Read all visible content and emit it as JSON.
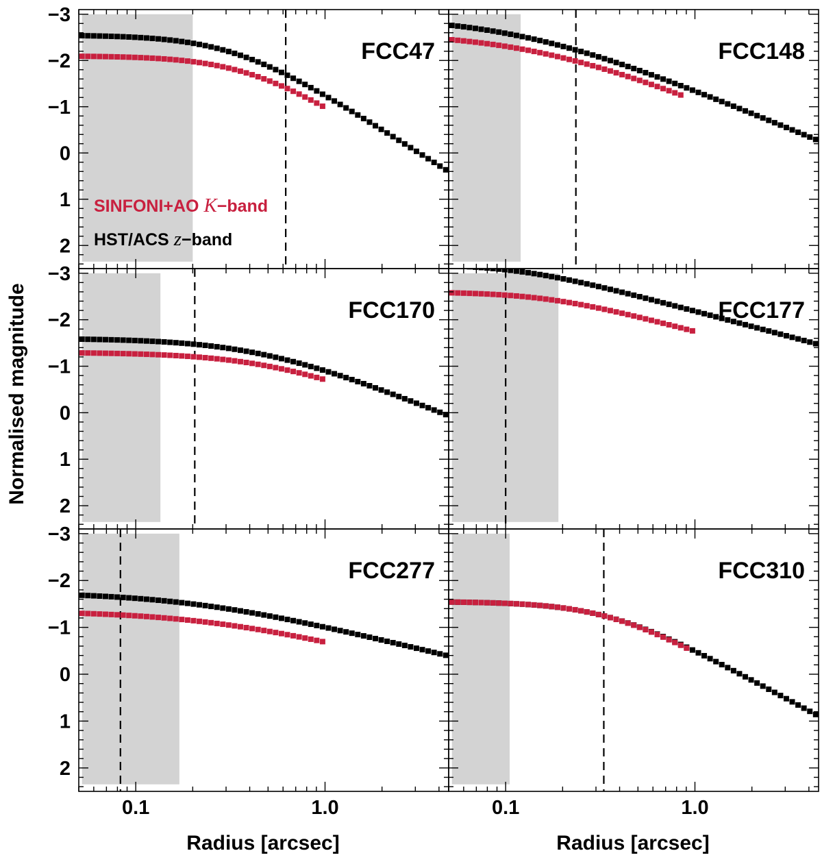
{
  "chart_data": {
    "type": "scatter",
    "ylabel": "Normalised magnitude",
    "xlabel": "Radius [arcsec]",
    "x_scale": "log",
    "xlim": [
      0.05,
      4.5
    ],
    "ylim": [
      2.5,
      -3.1
    ],
    "x_ticks": [
      {
        "value": 0.1,
        "label": "0.1"
      },
      {
        "value": 1.0,
        "label": "1.0"
      }
    ],
    "y_ticks": [
      {
        "value": -3,
        "label": "−3"
      },
      {
        "value": -2,
        "label": "−2"
      },
      {
        "value": -1,
        "label": "−1"
      },
      {
        "value": 0,
        "label": "0"
      },
      {
        "value": 1,
        "label": "1"
      },
      {
        "value": 2,
        "label": "2"
      }
    ],
    "legend": {
      "placement": "lower-left of top-left panel",
      "entries": [
        {
          "text": "SINFONI+AO ",
          "italic": "K",
          "suffix": "−band",
          "color": "#c8203f"
        },
        {
          "text": "HST/ACS ",
          "italic": "z",
          "suffix": "−band",
          "color": "#000000"
        }
      ]
    },
    "colors": {
      "sinfoni": "#c8203f",
      "hst": "#000000",
      "shade": "#d3d3d3",
      "dashed": "#000000"
    },
    "panels": [
      {
        "name": "FCC47",
        "shade_x": [
          0.052,
          0.2
        ],
        "dashed_x": 0.62,
        "hst": {
          "center": -2.55,
          "rb": 0.33,
          "alpha": 2.0,
          "slope": 2.6,
          "x_end": 4.5
        },
        "sinfoni": {
          "center": -2.1,
          "rb": 0.4,
          "alpha": 2.0,
          "slope": 2.6,
          "x_end": 1.0
        }
      },
      {
        "name": "FCC148",
        "shade_x": [
          0.052,
          0.12
        ],
        "dashed_x": 0.235,
        "hst": {
          "center": -2.95,
          "rb": 0.12,
          "alpha": 1.2,
          "slope": 1.7,
          "x_end": 4.5
        },
        "sinfoni": {
          "center": -2.6,
          "rb": 0.15,
          "alpha": 1.2,
          "slope": 1.7,
          "x_end": 0.9
        }
      },
      {
        "name": "FCC170",
        "shade_x": [
          0.052,
          0.135
        ],
        "dashed_x": 0.205,
        "hst": {
          "center": -1.6,
          "rb": 0.45,
          "alpha": 1.5,
          "slope": 1.65,
          "x_end": 4.5
        },
        "sinfoni": {
          "center": -1.3,
          "rb": 0.55,
          "alpha": 1.5,
          "slope": 1.65,
          "x_end": 1.0
        }
      },
      {
        "name": "FCC177",
        "shade_x": [
          0.052,
          0.19
        ],
        "dashed_x": 0.1,
        "hst": {
          "center": -3.2,
          "rb": 0.12,
          "alpha": 2.0,
          "slope": 1.1,
          "x_end": 4.5
        },
        "sinfoni": {
          "center": -2.6,
          "rb": 0.17,
          "alpha": 2.0,
          "slope": 1.1,
          "x_end": 1.0
        }
      },
      {
        "name": "FCC277",
        "shade_x": [
          0.052,
          0.17
        ],
        "dashed_x": 0.083,
        "hst": {
          "center": -1.75,
          "rb": 0.2,
          "alpha": 1.2,
          "slope": 1.0,
          "x_end": 4.5
        },
        "sinfoni": {
          "center": -1.35,
          "rb": 0.25,
          "alpha": 1.2,
          "slope": 1.0,
          "x_end": 1.0
        }
      },
      {
        "name": "FCC310",
        "shade_x": [
          0.052,
          0.105
        ],
        "dashed_x": 0.33,
        "hst": {
          "center": -1.55,
          "rb": 0.35,
          "alpha": 2.0,
          "slope": 2.2,
          "x_end": 4.5
        },
        "sinfoni": {
          "center": -1.55,
          "rb": 0.36,
          "alpha": 2.0,
          "slope": 2.3,
          "x_end": 0.95
        }
      }
    ]
  }
}
